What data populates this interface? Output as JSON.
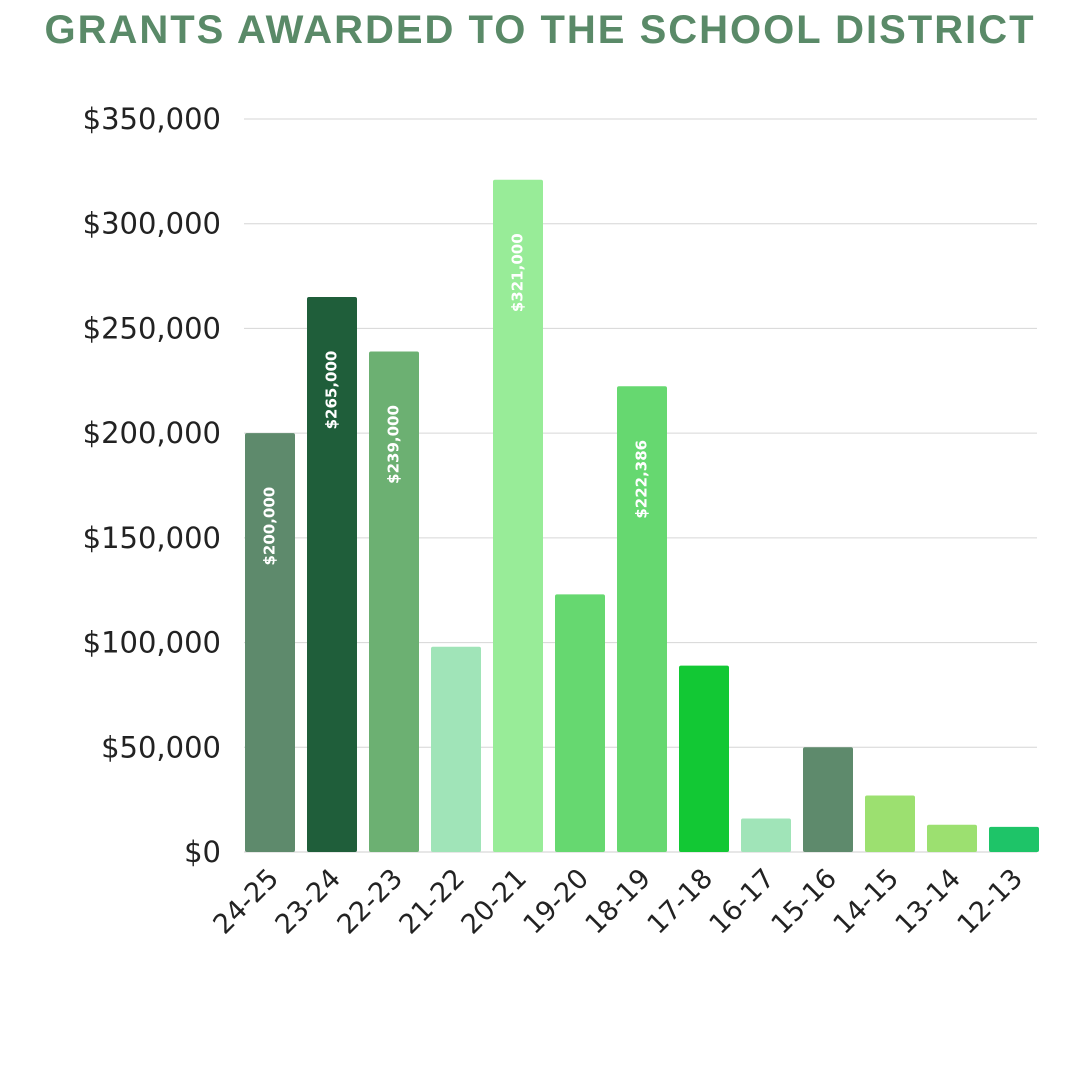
{
  "chart_data": {
    "type": "bar",
    "title": "GRANTS AWARDED TO THE SCHOOL DISTRICT",
    "xlabel": "",
    "ylabel": "",
    "ylim": [
      0,
      350000
    ],
    "y_ticks": [
      0,
      50000,
      100000,
      150000,
      200000,
      250000,
      300000,
      350000
    ],
    "y_tick_labels": [
      "$0",
      "$50,000",
      "$100,000",
      "$150,000",
      "$200,000",
      "$250,000",
      "$300,000",
      "$350,000"
    ],
    "grid": true,
    "categories": [
      "24-25",
      "23-24",
      "22-23",
      "21-22",
      "20-21",
      "19-20",
      "18-19",
      "17-18",
      "16-17",
      "15-16",
      "14-15",
      "13-14",
      "12-13"
    ],
    "values": [
      200000,
      265000,
      239000,
      98000,
      321000,
      123000,
      222386,
      89000,
      16000,
      50000,
      27000,
      13000,
      12000
    ],
    "data_labels": [
      "$200,000",
      "$265,000",
      "$239,000",
      "",
      "$321,000",
      "",
      "$222,386",
      "",
      "",
      "",
      "",
      "",
      ""
    ],
    "colors": [
      "#5e8a6c",
      "#1f5e3a",
      "#6cb072",
      "#a0e4b8",
      "#98ec98",
      "#66d870",
      "#66d870",
      "#12c834",
      "#a0e4b8",
      "#5e8a6c",
      "#9ce070",
      "#9ce070",
      "#1ec468"
    ]
  }
}
